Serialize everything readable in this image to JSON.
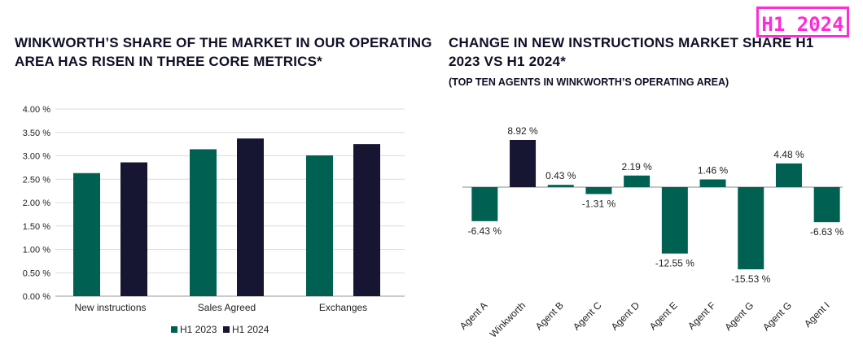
{
  "badge": "H1 2024",
  "left_title": "WINKWORTH’S SHARE OF THE MARKET IN OUR OPERATING AREA HAS RISEN IN THREE CORE METRICS*",
  "right_title": "CHANGE IN NEW INSTRUCTIONS MARKET SHARE H1 2023 VS H1 2024*",
  "right_subtitle": "(TOP TEN AGENTS IN WINKWORTH’S OPERATING AREA)",
  "colors": {
    "h1_2023": "#006152",
    "h1_2024": "#161632",
    "badge": "#ff2bd6"
  },
  "chart_data": [
    {
      "type": "bar",
      "title": "WINKWORTH’S SHARE OF THE MARKET IN OUR OPERATING AREA HAS RISEN IN THREE CORE METRICS*",
      "categories": [
        "New instructions",
        "Sales Agreed",
        "Exchanges"
      ],
      "series": [
        {
          "name": "H1 2023",
          "values": [
            2.63,
            3.14,
            3.01
          ]
        },
        {
          "name": "H1 2024",
          "values": [
            2.86,
            3.37,
            3.25
          ]
        }
      ],
      "yticks": [
        "0.00 %",
        "0.50 %",
        "1.00 %",
        "1.50 %",
        "2.00 %",
        "2.50 %",
        "3.00 %",
        "3.50 %",
        "4.00 %"
      ],
      "ylim": [
        0,
        4
      ],
      "legend": "bottom",
      "grid": true
    },
    {
      "type": "bar",
      "title": "CHANGE IN NEW INSTRUCTIONS MARKET SHARE H1 2023 VS H1 2024*",
      "subtitle": "(TOP TEN AGENTS IN WINKWORTH’S OPERATING AREA)",
      "categories": [
        "Agent A",
        "Winkworth",
        "Agent B",
        "Agent C",
        "Agent D",
        "Agent E",
        "Agent F",
        "Agent G",
        "Agent G",
        "Agent I"
      ],
      "values": [
        -6.43,
        8.92,
        0.43,
        -1.31,
        2.19,
        -12.55,
        1.46,
        -15.53,
        4.48,
        -6.63
      ],
      "labels": [
        "-6.43 %",
        "8.92 %",
        "0.43 %",
        "-1.31 %",
        "2.19 %",
        "-12.55 %",
        "1.46 %",
        "-15.53 %",
        "4.48 %",
        "-6.63 %"
      ],
      "highlight": "Winkworth",
      "ylim": [
        -16,
        9
      ],
      "grid": false
    }
  ]
}
